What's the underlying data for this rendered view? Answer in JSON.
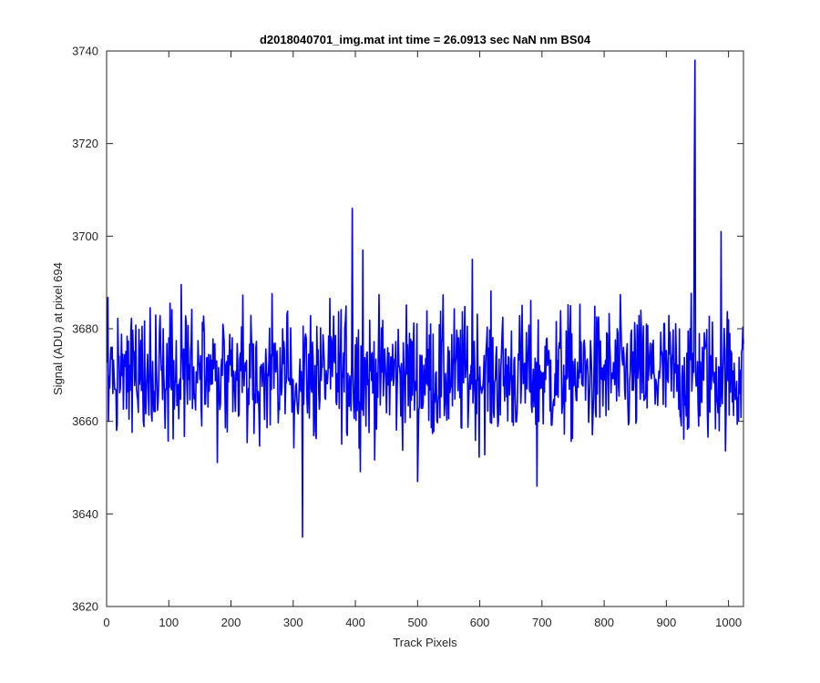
{
  "chart_data": {
    "type": "line",
    "title": "d2018040701_img.mat int time = 26.0913 sec  NaN nm BS04",
    "xlabel": "Track Pixels",
    "ylabel": "Signal (ADU) at pixel 694",
    "xlim": [
      0,
      1024
    ],
    "ylim": [
      3620,
      3740
    ],
    "x_ticks": [
      0,
      100,
      200,
      300,
      400,
      500,
      600,
      700,
      800,
      900,
      1000
    ],
    "y_ticks": [
      3620,
      3640,
      3660,
      3680,
      3700,
      3720,
      3740
    ],
    "x_tick_labels": [
      "0",
      "100",
      "200",
      "300",
      "400",
      "500",
      "600",
      "700",
      "800",
      "900",
      "1000"
    ],
    "y_tick_labels": [
      "3620",
      "3640",
      "3660",
      "3680",
      "3700",
      "3720",
      "3740"
    ],
    "grid": false,
    "series": [
      {
        "color": "#0000ff",
        "x_start": 1,
        "x_step": 1,
        "baseline": 3670,
        "noise_amplitude": 9,
        "num_points": 1024,
        "notable_points": [
          {
            "x": 315,
            "y": 3635
          },
          {
            "x": 395,
            "y": 3706
          },
          {
            "x": 412,
            "y": 3697
          },
          {
            "x": 588,
            "y": 3695
          },
          {
            "x": 945,
            "y": 3714
          },
          {
            "x": 946,
            "y": 3738
          },
          {
            "x": 988,
            "y": 3701
          },
          {
            "x": 692,
            "y": 3646
          },
          {
            "x": 500,
            "y": 3647
          },
          {
            "x": 3,
            "y": 3660
          }
        ]
      }
    ]
  }
}
